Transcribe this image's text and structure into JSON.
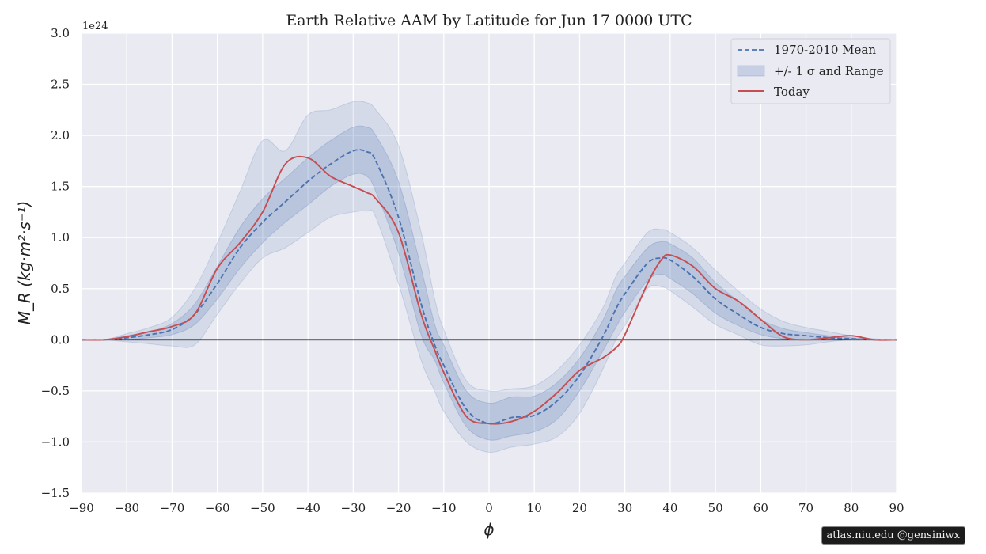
{
  "chart_data": {
    "type": "line",
    "title": "Earth Relative AAM by Latitude for Jun 17 0000 UTC",
    "xlabel": "ϕ",
    "ylabel": "M_R (kg·m²·s⁻¹)",
    "y_scale_label": "1e24",
    "xlim": [
      -90,
      90
    ],
    "ylim": [
      -1.5,
      3.0
    ],
    "x_ticks": [
      -90,
      -80,
      -70,
      -60,
      -50,
      -40,
      -30,
      -20,
      -10,
      0,
      10,
      20,
      30,
      40,
      50,
      60,
      70,
      80,
      90
    ],
    "x_tick_labels": [
      "−90",
      "−80",
      "−70",
      "−60",
      "−50",
      "−40",
      "−30",
      "−20",
      "−10",
      "0",
      "10",
      "20",
      "30",
      "40",
      "50",
      "60",
      "70",
      "80",
      "90"
    ],
    "y_ticks": [
      -1.5,
      -1.0,
      -0.5,
      0.0,
      0.5,
      1.0,
      1.5,
      2.0,
      2.5,
      3.0
    ],
    "y_tick_labels": [
      "−1.5",
      "−1.0",
      "−0.5",
      "0.0",
      "0.5",
      "1.0",
      "1.5",
      "2.0",
      "2.5",
      "3.0"
    ],
    "grid": true,
    "legend_position": "top-right",
    "x": [
      -90,
      -85,
      -80,
      -75,
      -70,
      -65,
      -60,
      -55,
      -50,
      -45,
      -40,
      -35,
      -30,
      -27,
      -25,
      -20,
      -15,
      -12,
      -10,
      -5,
      0,
      5,
      10,
      15,
      20,
      25,
      28,
      30,
      35,
      38,
      40,
      45,
      50,
      55,
      60,
      65,
      70,
      75,
      80,
      85,
      90
    ],
    "series": [
      {
        "name": "1970-2010 Mean",
        "style": "dashed",
        "color": "#4c72b0",
        "values": [
          0.0,
          0.0,
          0.02,
          0.05,
          0.1,
          0.25,
          0.55,
          0.9,
          1.15,
          1.35,
          1.55,
          1.72,
          1.85,
          1.84,
          1.75,
          1.2,
          0.35,
          -0.05,
          -0.25,
          -0.68,
          -0.82,
          -0.76,
          -0.74,
          -0.6,
          -0.35,
          0.02,
          0.3,
          0.45,
          0.75,
          0.8,
          0.78,
          0.62,
          0.4,
          0.25,
          0.12,
          0.06,
          0.04,
          0.02,
          0.01,
          0.0,
          0.0
        ]
      },
      {
        "name": "+/- 1 σ and Range",
        "style": "band",
        "color": "#4c72b0",
        "sigma_low": [
          0.0,
          0.0,
          0.0,
          0.02,
          0.05,
          0.15,
          0.4,
          0.7,
          0.95,
          1.15,
          1.32,
          1.5,
          1.62,
          1.6,
          1.45,
          0.85,
          0.05,
          -0.2,
          -0.42,
          -0.85,
          -0.98,
          -0.94,
          -0.9,
          -0.78,
          -0.5,
          -0.12,
          0.12,
          0.27,
          0.58,
          0.64,
          0.6,
          0.45,
          0.26,
          0.14,
          0.05,
          0.01,
          0.0,
          0.0,
          0.0,
          0.0,
          0.0
        ],
        "sigma_high": [
          0.0,
          0.0,
          0.04,
          0.08,
          0.16,
          0.35,
          0.72,
          1.1,
          1.38,
          1.58,
          1.78,
          1.95,
          2.08,
          2.08,
          2.0,
          1.55,
          0.7,
          0.15,
          -0.05,
          -0.5,
          -0.62,
          -0.56,
          -0.55,
          -0.42,
          -0.18,
          0.18,
          0.48,
          0.62,
          0.9,
          0.96,
          0.94,
          0.8,
          0.56,
          0.38,
          0.2,
          0.11,
          0.07,
          0.04,
          0.02,
          0.0,
          0.0
        ],
        "range_low": [
          0.0,
          0.0,
          -0.02,
          -0.04,
          -0.06,
          -0.05,
          0.25,
          0.55,
          0.8,
          0.9,
          1.05,
          1.2,
          1.25,
          1.26,
          1.2,
          0.55,
          -0.2,
          -0.5,
          -0.7,
          -1.0,
          -1.1,
          -1.05,
          -1.02,
          -0.95,
          -0.72,
          -0.3,
          0.0,
          0.14,
          0.5,
          0.52,
          0.48,
          0.32,
          0.15,
          0.05,
          -0.05,
          -0.06,
          -0.05,
          -0.02,
          0.0,
          0.0,
          0.0
        ],
        "range_high": [
          0.0,
          0.0,
          0.06,
          0.12,
          0.22,
          0.5,
          0.95,
          1.45,
          1.95,
          1.85,
          2.2,
          2.25,
          2.33,
          2.32,
          2.25,
          1.9,
          1.05,
          0.4,
          0.1,
          -0.4,
          -0.5,
          -0.48,
          -0.45,
          -0.3,
          -0.05,
          0.3,
          0.62,
          0.75,
          1.05,
          1.08,
          1.05,
          0.9,
          0.68,
          0.48,
          0.3,
          0.18,
          0.12,
          0.08,
          0.04,
          0.01,
          0.0
        ]
      },
      {
        "name": "Today",
        "style": "solid",
        "color": "#c44e52",
        "values": [
          0.0,
          0.0,
          0.03,
          0.08,
          0.13,
          0.25,
          0.7,
          0.95,
          1.25,
          1.72,
          1.78,
          1.6,
          1.5,
          1.44,
          1.38,
          1.05,
          0.25,
          -0.1,
          -0.32,
          -0.75,
          -0.82,
          -0.8,
          -0.7,
          -0.52,
          -0.3,
          -0.18,
          -0.08,
          0.05,
          0.55,
          0.78,
          0.83,
          0.72,
          0.5,
          0.38,
          0.2,
          0.03,
          0.0,
          0.02,
          0.04,
          0.0,
          0.0
        ]
      }
    ],
    "zero_line": true,
    "credit": "atlas.niu.edu  @gensiniwx"
  }
}
